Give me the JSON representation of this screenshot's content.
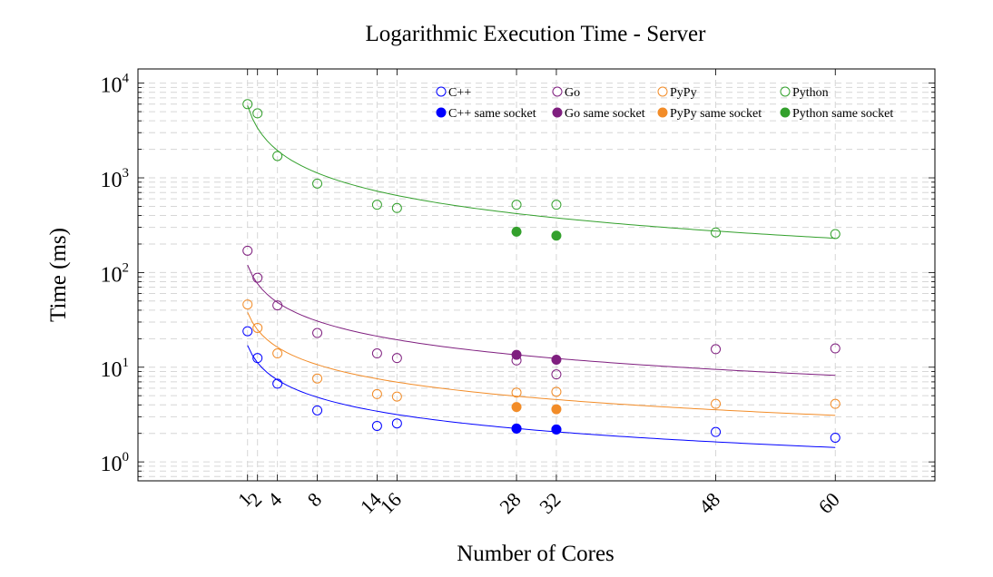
{
  "chart_data": {
    "type": "scatter",
    "title": "Logarithmic Execution Time - Server",
    "xlabel": "Number of Cores",
    "ylabel": "Time (ms)",
    "x_scale": "linear",
    "y_scale": "log",
    "xlim": [
      -10,
      70
    ],
    "ylim_log10": [
      -0.2,
      4.15
    ],
    "x_ticks": [
      1,
      2,
      4,
      8,
      14,
      16,
      28,
      32,
      48,
      60
    ],
    "y_ticks": [
      {
        "value": 1,
        "base": "10",
        "exp": "0"
      },
      {
        "value": 10,
        "base": "10",
        "exp": "1"
      },
      {
        "value": 100,
        "base": "10",
        "exp": "2"
      },
      {
        "value": 1000,
        "base": "10",
        "exp": "3"
      },
      {
        "value": 10000,
        "base": "10",
        "exp": "4"
      }
    ],
    "grid": true,
    "legend_position": "top-right",
    "series": [
      {
        "name": "C++",
        "color": "#0000ff",
        "marker": "open-circle",
        "fit_line": true,
        "points": [
          [
            1,
            24
          ],
          [
            2,
            12.5
          ],
          [
            4,
            6.7
          ],
          [
            8,
            3.5
          ],
          [
            14,
            2.4
          ],
          [
            16,
            2.55
          ],
          [
            28,
            2.25
          ],
          [
            32,
            2.2
          ],
          [
            48,
            2.07
          ],
          [
            60,
            1.8
          ]
        ],
        "fit": [
          [
            1,
            17
          ],
          [
            60,
            1.42
          ]
        ]
      },
      {
        "name": "Go",
        "color": "#7f1f7f",
        "marker": "open-circle",
        "fit_line": true,
        "points": [
          [
            1,
            170
          ],
          [
            2,
            88
          ],
          [
            4,
            45
          ],
          [
            8,
            23
          ],
          [
            14,
            14
          ],
          [
            16,
            12.5
          ],
          [
            28,
            11.8
          ],
          [
            32,
            8.4
          ],
          [
            48,
            15.5
          ],
          [
            60,
            15.8
          ]
        ],
        "fit": [
          [
            1,
            120
          ],
          [
            60,
            8.2
          ]
        ]
      },
      {
        "name": "PyPy",
        "color": "#f28c28",
        "marker": "open-circle",
        "fit_line": true,
        "points": [
          [
            1,
            46
          ],
          [
            2,
            26
          ],
          [
            4,
            14
          ],
          [
            8,
            7.6
          ],
          [
            14,
            5.2
          ],
          [
            16,
            4.9
          ],
          [
            28,
            5.4
          ],
          [
            32,
            5.5
          ],
          [
            48,
            4.1
          ],
          [
            60,
            4.1
          ]
        ],
        "fit": [
          [
            1,
            38
          ],
          [
            60,
            3.1
          ]
        ]
      },
      {
        "name": "Python",
        "color": "#33a02c",
        "marker": "open-circle",
        "fit_line": true,
        "points": [
          [
            1,
            6000
          ],
          [
            2,
            4800
          ],
          [
            4,
            1700
          ],
          [
            8,
            870
          ],
          [
            14,
            520
          ],
          [
            16,
            480
          ],
          [
            28,
            520
          ],
          [
            32,
            520
          ],
          [
            48,
            265
          ],
          [
            60,
            255
          ]
        ],
        "fit": [
          [
            1,
            5800
          ],
          [
            60,
            230
          ]
        ]
      },
      {
        "name": "C++ same socket",
        "color": "#0000ff",
        "marker": "filled-circle",
        "fit_line": false,
        "points": [
          [
            28,
            2.25
          ],
          [
            32,
            2.2
          ]
        ]
      },
      {
        "name": "Go same socket",
        "color": "#7f1f7f",
        "marker": "filled-circle",
        "fit_line": false,
        "points": [
          [
            28,
            13.5
          ],
          [
            32,
            12
          ]
        ]
      },
      {
        "name": "PyPy same socket",
        "color": "#f28c28",
        "marker": "filled-circle",
        "fit_line": false,
        "points": [
          [
            28,
            3.8
          ],
          [
            32,
            3.6
          ]
        ]
      },
      {
        "name": "Python same socket",
        "color": "#33a02c",
        "marker": "filled-circle",
        "fit_line": false,
        "points": [
          [
            28,
            270
          ],
          [
            32,
            245
          ]
        ]
      }
    ]
  }
}
